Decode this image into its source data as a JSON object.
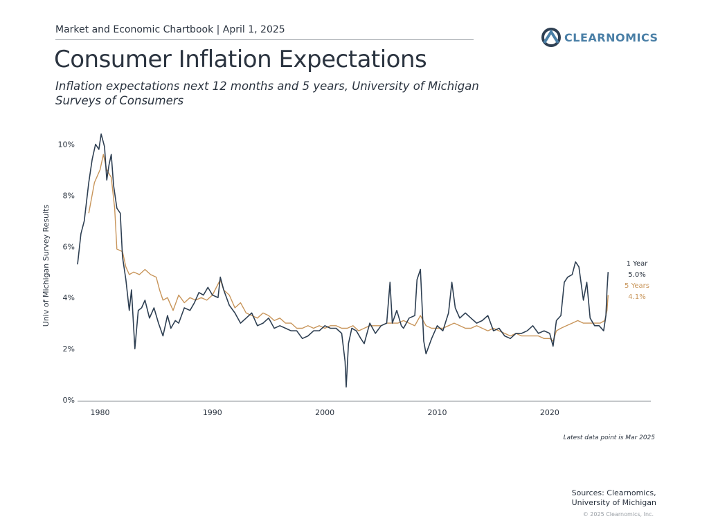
{
  "header": {
    "chartbook": "Market and Economic Chartbook | April 1, 2025",
    "logo_text": "CLEARNOMICS",
    "title": "Consumer Inflation Expectations",
    "subtitle": "Inflation expectations next 12 months and 5 years, University of Michigan Surveys of Consumers"
  },
  "footer": {
    "latest_note": "Latest data point is Mar 2025",
    "sources_line1": "Sources: Clearnomics,",
    "sources_line2": "University of Michigan",
    "copyright": "© 2025 Clearnomics, Inc."
  },
  "colors": {
    "one_year": "#2e3f52",
    "five_year": "#c8955a",
    "axis": "#8a8f96",
    "text": "#2b3440",
    "logo": "#4a7fa6"
  },
  "chart_data": {
    "type": "line",
    "ylabel": "Univ of Michigan Survey Results",
    "xlabel": "",
    "xlim": [
      1978,
      2029
    ],
    "ylim": [
      0,
      10.5
    ],
    "xticks": [
      1980,
      1990,
      2000,
      2010,
      2020
    ],
    "yticks": [
      "0%",
      "2%",
      "4%",
      "6%",
      "8%",
      "10%"
    ],
    "grid": false,
    "series": [
      {
        "name": "1 Year",
        "end_label": "5.0%",
        "points": [
          [
            1978.0,
            5.3
          ],
          [
            1978.3,
            6.5
          ],
          [
            1978.6,
            7.0
          ],
          [
            1979.0,
            8.5
          ],
          [
            1979.3,
            9.4
          ],
          [
            1979.6,
            10.0
          ],
          [
            1979.9,
            9.8
          ],
          [
            1980.1,
            10.4
          ],
          [
            1980.4,
            9.9
          ],
          [
            1980.6,
            8.6
          ],
          [
            1980.8,
            9.2
          ],
          [
            1981.0,
            9.6
          ],
          [
            1981.2,
            8.4
          ],
          [
            1981.5,
            7.5
          ],
          [
            1981.8,
            7.3
          ],
          [
            1982.0,
            5.6
          ],
          [
            1982.3,
            4.7
          ],
          [
            1982.6,
            3.5
          ],
          [
            1982.8,
            4.3
          ],
          [
            1983.1,
            2.0
          ],
          [
            1983.4,
            3.5
          ],
          [
            1983.7,
            3.6
          ],
          [
            1984.0,
            3.9
          ],
          [
            1984.4,
            3.2
          ],
          [
            1984.8,
            3.6
          ],
          [
            1985.2,
            3.0
          ],
          [
            1985.6,
            2.5
          ],
          [
            1986.0,
            3.3
          ],
          [
            1986.3,
            2.8
          ],
          [
            1986.7,
            3.1
          ],
          [
            1987.0,
            3.0
          ],
          [
            1987.5,
            3.6
          ],
          [
            1988.0,
            3.5
          ],
          [
            1988.4,
            3.8
          ],
          [
            1988.8,
            4.2
          ],
          [
            1989.2,
            4.1
          ],
          [
            1989.6,
            4.4
          ],
          [
            1990.0,
            4.1
          ],
          [
            1990.5,
            4.0
          ],
          [
            1990.7,
            4.8
          ],
          [
            1991.0,
            4.3
          ],
          [
            1991.5,
            3.7
          ],
          [
            1992.0,
            3.4
          ],
          [
            1992.5,
            3.0
          ],
          [
            1993.0,
            3.2
          ],
          [
            1993.5,
            3.4
          ],
          [
            1994.0,
            2.9
          ],
          [
            1994.5,
            3.0
          ],
          [
            1995.0,
            3.2
          ],
          [
            1995.5,
            2.8
          ],
          [
            1996.0,
            2.9
          ],
          [
            1996.5,
            2.8
          ],
          [
            1997.0,
            2.7
          ],
          [
            1997.5,
            2.7
          ],
          [
            1998.0,
            2.4
          ],
          [
            1998.5,
            2.5
          ],
          [
            1999.0,
            2.7
          ],
          [
            1999.5,
            2.7
          ],
          [
            2000.0,
            2.9
          ],
          [
            2000.5,
            2.8
          ],
          [
            2001.0,
            2.8
          ],
          [
            2001.5,
            2.6
          ],
          [
            2001.8,
            1.5
          ],
          [
            2001.9,
            0.5
          ],
          [
            2002.1,
            2.2
          ],
          [
            2002.4,
            2.8
          ],
          [
            2002.8,
            2.7
          ],
          [
            2003.2,
            2.4
          ],
          [
            2003.5,
            2.2
          ],
          [
            2004.0,
            3.0
          ],
          [
            2004.5,
            2.6
          ],
          [
            2005.0,
            2.9
          ],
          [
            2005.5,
            3.0
          ],
          [
            2005.8,
            4.6
          ],
          [
            2006.0,
            3.0
          ],
          [
            2006.4,
            3.5
          ],
          [
            2006.8,
            2.9
          ],
          [
            2007.0,
            2.8
          ],
          [
            2007.5,
            3.2
          ],
          [
            2008.0,
            3.3
          ],
          [
            2008.2,
            4.7
          ],
          [
            2008.5,
            5.1
          ],
          [
            2008.8,
            2.3
          ],
          [
            2009.0,
            1.8
          ],
          [
            2009.5,
            2.4
          ],
          [
            2010.0,
            2.9
          ],
          [
            2010.5,
            2.7
          ],
          [
            2011.0,
            3.4
          ],
          [
            2011.3,
            4.6
          ],
          [
            2011.6,
            3.6
          ],
          [
            2012.0,
            3.2
          ],
          [
            2012.5,
            3.4
          ],
          [
            2013.0,
            3.2
          ],
          [
            2013.5,
            3.0
          ],
          [
            2014.0,
            3.1
          ],
          [
            2014.5,
            3.3
          ],
          [
            2015.0,
            2.7
          ],
          [
            2015.5,
            2.8
          ],
          [
            2016.0,
            2.5
          ],
          [
            2016.5,
            2.4
          ],
          [
            2017.0,
            2.6
          ],
          [
            2017.5,
            2.6
          ],
          [
            2018.0,
            2.7
          ],
          [
            2018.5,
            2.9
          ],
          [
            2019.0,
            2.6
          ],
          [
            2019.5,
            2.7
          ],
          [
            2020.0,
            2.6
          ],
          [
            2020.3,
            2.1
          ],
          [
            2020.6,
            3.1
          ],
          [
            2021.0,
            3.3
          ],
          [
            2021.3,
            4.6
          ],
          [
            2021.6,
            4.8
          ],
          [
            2022.0,
            4.9
          ],
          [
            2022.3,
            5.4
          ],
          [
            2022.6,
            5.2
          ],
          [
            2023.0,
            3.9
          ],
          [
            2023.3,
            4.6
          ],
          [
            2023.6,
            3.2
          ],
          [
            2024.0,
            2.9
          ],
          [
            2024.4,
            2.9
          ],
          [
            2024.8,
            2.7
          ],
          [
            2025.0,
            3.3
          ],
          [
            2025.1,
            4.3
          ],
          [
            2025.2,
            5.0
          ]
        ]
      },
      {
        "name": "5 Years",
        "end_label": "4.1%",
        "points": [
          [
            1979.0,
            7.3
          ],
          [
            1979.5,
            8.5
          ],
          [
            1980.0,
            9.0
          ],
          [
            1980.3,
            9.6
          ],
          [
            1980.6,
            9.0
          ],
          [
            1981.0,
            8.7
          ],
          [
            1981.3,
            7.5
          ],
          [
            1981.5,
            5.9
          ],
          [
            1982.0,
            5.8
          ],
          [
            1982.3,
            5.2
          ],
          [
            1982.6,
            4.9
          ],
          [
            1983.0,
            5.0
          ],
          [
            1983.5,
            4.9
          ],
          [
            1984.0,
            5.1
          ],
          [
            1984.5,
            4.9
          ],
          [
            1985.0,
            4.8
          ],
          [
            1985.3,
            4.3
          ],
          [
            1985.6,
            3.9
          ],
          [
            1986.0,
            4.0
          ],
          [
            1986.5,
            3.5
          ],
          [
            1987.0,
            4.1
          ],
          [
            1987.5,
            3.8
          ],
          [
            1988.0,
            4.0
          ],
          [
            1988.5,
            3.9
          ],
          [
            1989.0,
            4.0
          ],
          [
            1989.5,
            3.9
          ],
          [
            1990.0,
            4.1
          ],
          [
            1990.7,
            4.7
          ],
          [
            1991.0,
            4.3
          ],
          [
            1991.5,
            4.1
          ],
          [
            1992.0,
            3.6
          ],
          [
            1992.5,
            3.8
          ],
          [
            1993.0,
            3.4
          ],
          [
            1993.5,
            3.3
          ],
          [
            1994.0,
            3.2
          ],
          [
            1994.5,
            3.4
          ],
          [
            1995.0,
            3.3
          ],
          [
            1995.5,
            3.1
          ],
          [
            1996.0,
            3.2
          ],
          [
            1996.5,
            3.0
          ],
          [
            1997.0,
            3.0
          ],
          [
            1997.5,
            2.8
          ],
          [
            1998.0,
            2.8
          ],
          [
            1998.5,
            2.9
          ],
          [
            1999.0,
            2.8
          ],
          [
            1999.5,
            2.9
          ],
          [
            2000.0,
            2.8
          ],
          [
            2000.5,
            2.9
          ],
          [
            2001.0,
            2.9
          ],
          [
            2001.5,
            2.8
          ],
          [
            2002.0,
            2.8
          ],
          [
            2002.5,
            2.9
          ],
          [
            2003.0,
            2.7
          ],
          [
            2003.5,
            2.8
          ],
          [
            2004.0,
            2.9
          ],
          [
            2004.5,
            2.9
          ],
          [
            2005.0,
            2.9
          ],
          [
            2005.5,
            3.0
          ],
          [
            2006.0,
            3.0
          ],
          [
            2006.5,
            3.0
          ],
          [
            2007.0,
            3.1
          ],
          [
            2007.5,
            3.0
          ],
          [
            2008.0,
            2.9
          ],
          [
            2008.5,
            3.3
          ],
          [
            2009.0,
            2.9
          ],
          [
            2009.5,
            2.8
          ],
          [
            2010.0,
            2.8
          ],
          [
            2010.5,
            2.8
          ],
          [
            2011.0,
            2.9
          ],
          [
            2011.5,
            3.0
          ],
          [
            2012.0,
            2.9
          ],
          [
            2012.5,
            2.8
          ],
          [
            2013.0,
            2.8
          ],
          [
            2013.5,
            2.9
          ],
          [
            2014.0,
            2.8
          ],
          [
            2014.5,
            2.7
          ],
          [
            2015.0,
            2.8
          ],
          [
            2015.5,
            2.7
          ],
          [
            2016.0,
            2.6
          ],
          [
            2016.5,
            2.5
          ],
          [
            2017.0,
            2.6
          ],
          [
            2017.5,
            2.5
          ],
          [
            2018.0,
            2.5
          ],
          [
            2018.5,
            2.5
          ],
          [
            2019.0,
            2.5
          ],
          [
            2019.5,
            2.4
          ],
          [
            2020.0,
            2.4
          ],
          [
            2020.3,
            2.3
          ],
          [
            2020.6,
            2.7
          ],
          [
            2021.0,
            2.8
          ],
          [
            2021.5,
            2.9
          ],
          [
            2022.0,
            3.0
          ],
          [
            2022.5,
            3.1
          ],
          [
            2023.0,
            3.0
          ],
          [
            2023.5,
            3.0
          ],
          [
            2024.0,
            3.0
          ],
          [
            2024.5,
            3.0
          ],
          [
            2024.9,
            3.1
          ],
          [
            2025.1,
            3.5
          ],
          [
            2025.2,
            4.1
          ]
        ]
      }
    ]
  }
}
